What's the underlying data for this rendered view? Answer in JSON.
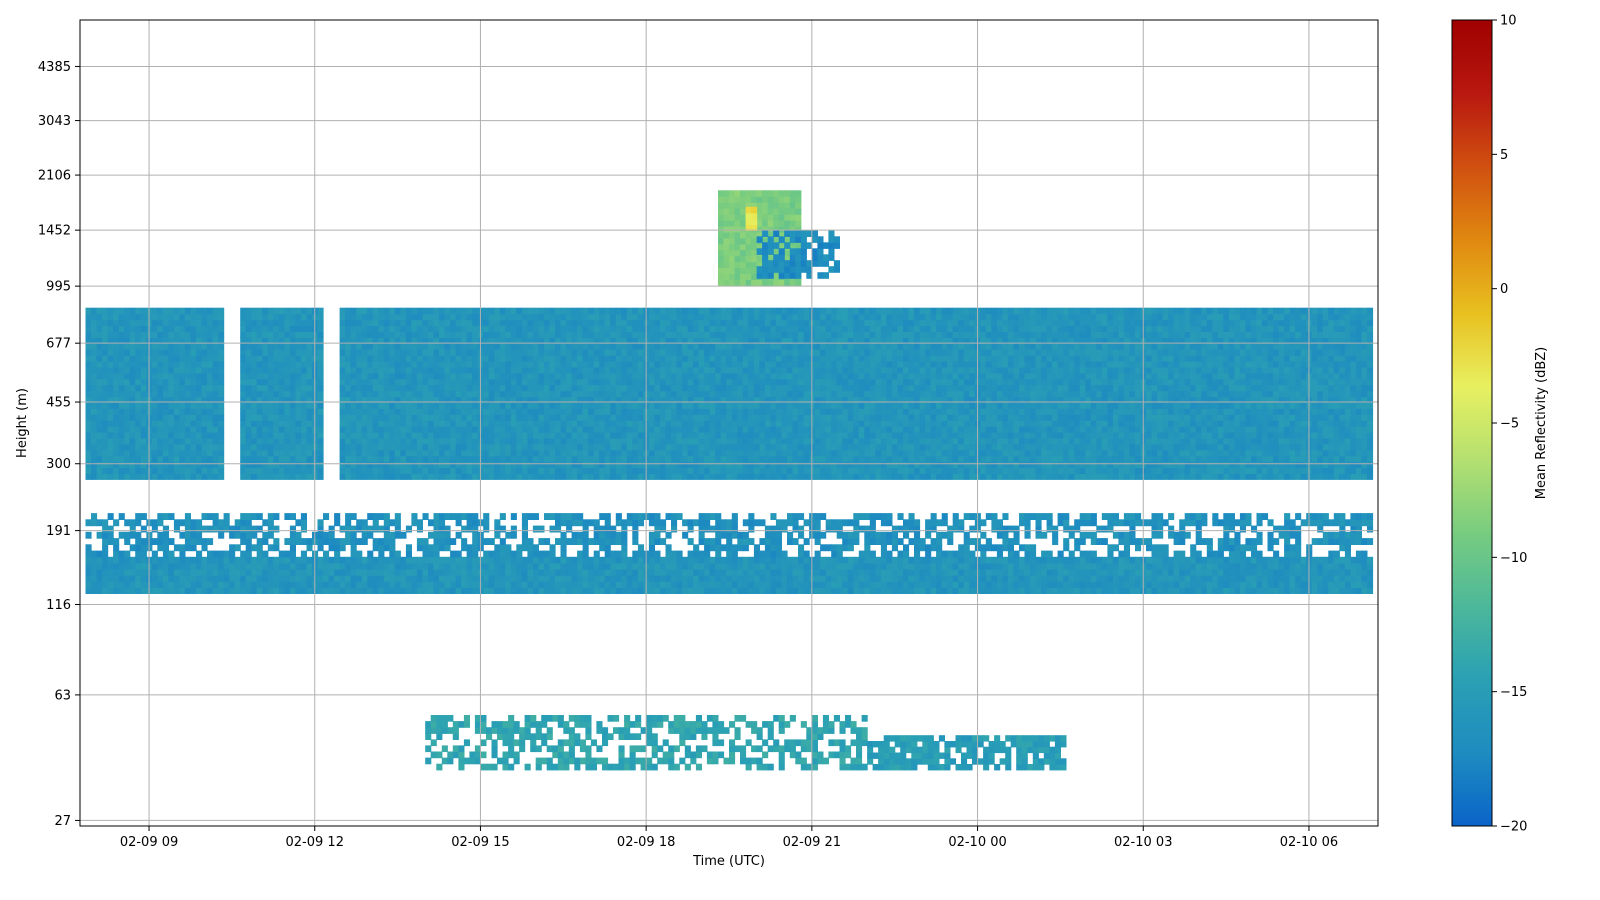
{
  "chart_data": {
    "type": "heatmap",
    "xlabel": "Time (UTC)",
    "ylabel": "Height (m)",
    "x_tick_labels": [
      "02-09 09",
      "02-09 12",
      "02-09 15",
      "02-09 18",
      "02-09 21",
      "02-10 00",
      "02-10 03",
      "02-10 06"
    ],
    "x_range_hours": [
      7.75,
      31.25
    ],
    "y_scale": "log",
    "y_tick_labels": [
      "27",
      "63",
      "116",
      "191",
      "300",
      "455",
      "677",
      "995",
      "1452",
      "2106",
      "3043",
      "4385"
    ],
    "y_range": [
      26,
      6000
    ],
    "grid": true,
    "colorbar": {
      "label": "Mean Reflectivity (dBZ)",
      "range": [
        -20,
        10
      ],
      "ticks": [
        "10",
        "5",
        "0",
        "−5",
        "−10",
        "−15",
        "−20"
      ],
      "colors": [
        "#0a64c8",
        "#1e8cc0",
        "#2aa0b4",
        "#4cb89a",
        "#78cc80",
        "#b4e070",
        "#e8f060",
        "#e8c020",
        "#e08810",
        "#d05010",
        "#b81810",
        "#a00000"
      ]
    },
    "regions": [
      {
        "t0": 7.85,
        "t1": 10.35,
        "h0": 270,
        "h1": 860,
        "dbz": -16
      },
      {
        "t0": 10.65,
        "t1": 12.15,
        "h0": 270,
        "h1": 860,
        "dbz": -16
      },
      {
        "t0": 12.45,
        "t1": 31.15,
        "h0": 270,
        "h1": 860,
        "dbz": -16
      },
      {
        "t0": 7.85,
        "t1": 31.15,
        "h0": 125,
        "h1": 160,
        "dbz": -16
      },
      {
        "t0": 7.85,
        "t1": 31.15,
        "h0": 160,
        "h1": 215,
        "dbz": -16.5,
        "density": 0.6
      },
      {
        "t0": 14.0,
        "t1": 22.0,
        "h0": 38,
        "h1": 55,
        "dbz": -14,
        "density": 0.55
      },
      {
        "t0": 22.0,
        "t1": 25.6,
        "h0": 38,
        "h1": 48,
        "dbz": -15,
        "density": 0.8
      },
      {
        "t0": 19.3,
        "t1": 20.8,
        "h0": 1000,
        "h1": 1900,
        "dbz": -9
      },
      {
        "t0": 19.8,
        "t1": 20.0,
        "h0": 1450,
        "h1": 1700,
        "dbz": -3
      },
      {
        "t0": 20.0,
        "t1": 21.5,
        "h0": 1050,
        "h1": 1450,
        "dbz": -17,
        "density": 0.7
      }
    ]
  }
}
